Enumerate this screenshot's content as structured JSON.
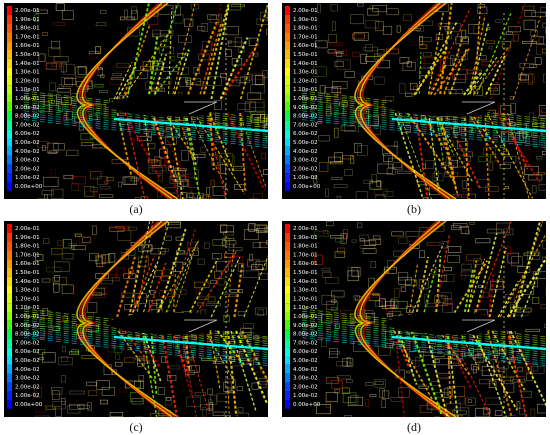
{
  "legend": {
    "labels": [
      "2.00e-01",
      "1.90e-01",
      "1.80e-01",
      "1.70e-01",
      "1.60e-01",
      "1.50e-01",
      "1.40e-01",
      "1.30e-01",
      "1.20e-01",
      "1.10e-01",
      "1.00e-01",
      "9.00e-02",
      "8.00e-02",
      "7.00e-02",
      "6.00e-02",
      "5.00e-02",
      "4.00e-02",
      "3.00e-02",
      "2.00e-02",
      "1.00e-02",
      "0.00e+00"
    ],
    "colors": [
      "#ff0000",
      "#ff3300",
      "#ff5500",
      "#ff7700",
      "#ff9900",
      "#ffbb00",
      "#ffdd00",
      "#ffff00",
      "#ddff00",
      "#bbff00",
      "#88ff00",
      "#44ff00",
      "#00ff44",
      "#00ff99",
      "#00ffdd",
      "#00ddff",
      "#00aaff",
      "#0077ff",
      "#0044ff",
      "#0022ff",
      "#0000ff"
    ]
  },
  "panels": [
    {
      "id": "a",
      "caption": "(a)"
    },
    {
      "id": "b",
      "caption": "(b)"
    },
    {
      "id": "c",
      "caption": "(c)"
    },
    {
      "id": "d",
      "caption": "(d)"
    }
  ]
}
